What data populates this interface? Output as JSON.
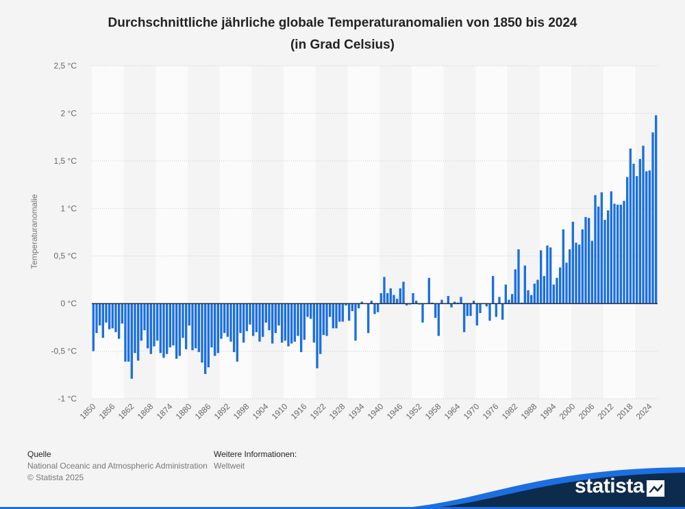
{
  "title": {
    "line1": "Durchschnittliche jährliche globale Temperaturanomalien von 1850 bis 2024",
    "line2": "(in Grad Celsius)"
  },
  "footer": {
    "source_head": "Quelle",
    "source_text": "National Oceanic and Atmospheric Administration",
    "copyright": "© Statista 2025",
    "more_head": "Weitere Informationen:",
    "more_text": "Weltweit"
  },
  "brand": {
    "name": "statista"
  },
  "colors": {
    "bar": "#1b6fe0",
    "background": "#f4f4f4",
    "band": "#fbfbfb",
    "brand_dark": "#0d2b4d",
    "brand_accent": "#1b6fe0"
  },
  "chart_data": {
    "type": "bar",
    "ylabel": "Temperaturanomalie",
    "ylim": [
      -1,
      2.5
    ],
    "yticks": [
      -1,
      -0.5,
      0,
      0.5,
      1,
      1.5,
      2,
      2.5
    ],
    "ytick_labels": [
      "-1 °C",
      "-0,5 °C",
      "0 °C",
      "0,5 °C",
      "1 °C",
      "1,5 °C",
      "2 °C",
      "2,5 °C"
    ],
    "xtick_labels": [
      "1850",
      "1856",
      "1862",
      "1868",
      "1874",
      "1880",
      "1886",
      "1892",
      "1898",
      "1904",
      "1910",
      "1916",
      "1922",
      "1928",
      "1934",
      "1940",
      "1946",
      "1952",
      "1958",
      "1964",
      "1970",
      "1976",
      "1982",
      "1988",
      "1994",
      "2000",
      "2006",
      "2012",
      "2018",
      "2024"
    ],
    "grid": true,
    "x_start": 1850,
    "values": [
      -0.5,
      -0.31,
      -0.23,
      -0.36,
      -0.2,
      -0.27,
      -0.26,
      -0.3,
      -0.37,
      -0.21,
      -0.61,
      -0.61,
      -0.79,
      -0.52,
      -0.6,
      -0.39,
      -0.28,
      -0.47,
      -0.53,
      -0.45,
      -0.39,
      -0.52,
      -0.57,
      -0.53,
      -0.46,
      -0.44,
      -0.58,
      -0.55,
      -0.36,
      -0.48,
      -0.23,
      -0.49,
      -0.47,
      -0.51,
      -0.62,
      -0.74,
      -0.67,
      -0.46,
      -0.55,
      -0.52,
      -0.37,
      -0.31,
      -0.35,
      -0.4,
      -0.51,
      -0.61,
      -0.31,
      -0.41,
      -0.29,
      -0.22,
      -0.34,
      -0.3,
      -0.4,
      -0.35,
      -0.2,
      -0.28,
      -0.42,
      -0.31,
      -0.23,
      -0.41,
      -0.39,
      -0.45,
      -0.42,
      -0.4,
      -0.34,
      -0.51,
      -0.38,
      -0.14,
      -0.16,
      -0.41,
      -0.68,
      -0.53,
      -0.33,
      -0.34,
      -0.14,
      -0.26,
      -0.26,
      -0.19,
      -0.19,
      -0.02,
      -0.18,
      -0.08,
      -0.39,
      -0.05,
      0.02,
      0.0,
      -0.31,
      0.03,
      -0.11,
      -0.09,
      0.11,
      0.28,
      0.11,
      0.16,
      0.09,
      0.05,
      0.16,
      0.23,
      -0.02,
      -0.01,
      0.11,
      0.03,
      -0.01,
      -0.2,
      0.0,
      0.27,
      0.01,
      -0.15,
      -0.34,
      0.04,
      0.0,
      0.08,
      -0.04,
      0.02,
      0.01,
      0.07,
      -0.3,
      -0.13,
      -0.13,
      0.03,
      -0.23,
      -0.1,
      0.0,
      -0.03,
      -0.18,
      0.29,
      -0.14,
      0.07,
      -0.17,
      0.2,
      0.04,
      0.1,
      0.36,
      0.57,
      0.01,
      0.4,
      0.14,
      0.09,
      0.21,
      0.25,
      0.56,
      0.29,
      0.61,
      0.59,
      0.2,
      0.27,
      0.38,
      0.78,
      0.43,
      0.57,
      0.86,
      0.64,
      0.62,
      0.78,
      0.91,
      0.9,
      0.66,
      1.14,
      1.02,
      1.17,
      0.88,
      0.98,
      1.18,
      1.05,
      1.04,
      1.04,
      1.08,
      1.33,
      1.63,
      1.47,
      1.34,
      1.52,
      1.66,
      1.39,
      1.4,
      1.8,
      1.98
    ]
  }
}
